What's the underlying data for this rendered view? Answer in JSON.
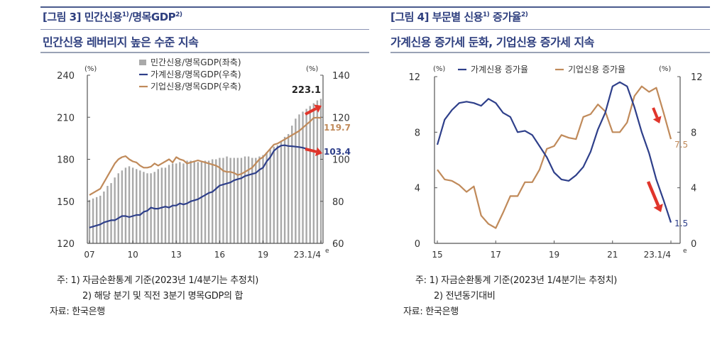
{
  "figures": [
    {
      "title": "[그림 3] 민간신용",
      "title_sup1": "1)",
      "title_mid": "/명목GDP",
      "title_sup2": "2)",
      "subtitle": "민간신용 레버리지 높은 수준 지속",
      "notes": [
        {
          "prefix": "주:",
          "text": "1) 자금순환통계 기준(2023년 1/4분기는 추정치)"
        },
        {
          "prefix": "",
          "text": "2) 해당 분기 및 직전 3분기 명목GDP의 합"
        },
        {
          "prefix": "자료:",
          "text": "한국은행"
        }
      ]
    },
    {
      "title": "[그림 4] 부문별 신용",
      "title_sup1": "1)",
      "title_mid": " 증가율",
      "title_sup2": "2)",
      "subtitle": "가계신용 증가세 둔화, 기업신용 증가세 지속",
      "notes": [
        {
          "prefix": "주:",
          "text": "1) 자금순환통계 기준(2023년 1/4분기는 추정치)"
        },
        {
          "prefix": "",
          "text": "2) 전년동기대비"
        },
        {
          "prefix": "자료:",
          "text": "한국은행"
        }
      ]
    }
  ],
  "colors": {
    "title": "#2e3f7f",
    "bars": "#a9a9a9",
    "household": "#2e3f8a",
    "corporate": "#c08a5a",
    "arrow": "#e0352b",
    "axis": "#555555"
  },
  "chart_data": [
    {
      "type": "bar+line",
      "title": "민간신용/명목GDP",
      "left_axis": {
        "unit": "(%)",
        "ylim": [
          120,
          240
        ],
        "ticks": [
          "120",
          "150",
          "180",
          "210",
          "240"
        ]
      },
      "right_axis": {
        "unit": "(%)",
        "ylim": [
          60,
          140
        ],
        "ticks": [
          "60",
          "80",
          "100",
          "120",
          "140"
        ]
      },
      "x_tick_labels": [
        "07",
        "10",
        "13",
        "16",
        "19",
        "23.1/4"
      ],
      "x_tick_suffix": "e",
      "x_start": "2007Q1",
      "x_end": "2023Q1",
      "legend": [
        "민간신용/명목GDP(좌축)",
        "가계신용/명목GDP(우축)",
        "기업신용/명목GDP(우축)"
      ],
      "annotations": {
        "bar_last": "223.1",
        "corporate_last": "119.7",
        "household_last": "103.4"
      },
      "series": [
        {
          "name": "민간신용/명목GDP(좌축)",
          "axis": "left",
          "kind": "bar",
          "values": [
            151,
            152,
            153,
            154,
            157,
            161,
            163,
            167,
            170,
            172,
            174,
            175,
            174,
            173,
            172,
            171,
            170,
            170,
            171,
            173,
            174,
            174,
            176,
            177,
            177,
            178,
            177,
            179,
            179,
            179,
            178,
            178,
            179,
            179,
            180,
            180,
            181,
            181,
            182,
            181,
            181,
            181,
            181,
            182,
            182,
            181,
            181,
            182,
            183,
            185,
            187,
            189,
            190,
            193,
            196,
            198,
            204,
            209,
            212,
            214,
            216,
            218,
            220,
            222,
            223.1
          ]
        },
        {
          "name": "가계신용/명목GDP(우축)",
          "axis": "right",
          "kind": "line",
          "values": [
            67.5,
            68,
            68.5,
            69,
            70,
            70.5,
            71,
            71,
            72,
            73,
            73,
            72.5,
            73,
            73.5,
            73.5,
            75,
            75.5,
            77,
            76.5,
            76.5,
            77,
            77.5,
            77,
            78,
            78,
            79,
            78.5,
            79,
            80,
            80.5,
            81,
            82,
            83,
            84,
            84.5,
            86,
            87.5,
            88,
            88.5,
            89,
            90,
            90.5,
            91,
            92,
            92.5,
            93,
            93.5,
            95,
            96,
            99,
            101,
            104,
            105.5,
            106.5,
            106.7,
            106.3,
            106.2,
            106,
            105.8,
            105.5,
            105,
            104.5,
            104,
            103.7,
            103.4
          ]
        },
        {
          "name": "기업신용/명목GDP(우축)",
          "axis": "right",
          "kind": "line",
          "values": [
            83,
            84,
            85,
            86,
            89,
            92,
            95,
            98,
            100,
            101,
            101.5,
            100,
            99,
            98.5,
            97,
            96,
            96,
            96.5,
            98,
            97,
            98,
            99,
            100,
            98.5,
            101,
            100,
            99.5,
            98,
            98.5,
            99,
            99.5,
            99,
            98.5,
            98,
            97.5,
            97,
            96,
            94.5,
            94,
            94,
            93.5,
            92.5,
            93,
            94,
            95,
            96,
            98,
            100,
            101,
            103,
            105,
            107,
            107.5,
            108.5,
            109.5,
            110.5,
            111.5,
            112.5,
            113.5,
            115,
            116.5,
            118,
            119.7,
            119.8,
            119.7
          ]
        }
      ]
    },
    {
      "type": "line",
      "title": "부문별 신용 증가율",
      "left_axis": {
        "unit": "(%)",
        "ylim": [
          0,
          12
        ],
        "ticks": [
          "0",
          "4",
          "8",
          "12"
        ]
      },
      "right_axis": {
        "unit": "(%)",
        "ylim": [
          0,
          12
        ],
        "ticks": [
          "0",
          "4",
          "8",
          "12"
        ]
      },
      "x_tick_labels": [
        "15",
        "17",
        "19",
        "21",
        "23.1/4"
      ],
      "x_tick_suffix": "e",
      "x_start": "2015Q1",
      "x_end": "2023Q1",
      "legend": [
        "가계신용 증가율",
        "기업신용 증가율"
      ],
      "annotations": {
        "corporate_last": "7.5",
        "household_last": "1.5"
      },
      "series": [
        {
          "name": "가계신용 증가율",
          "values": [
            7.1,
            8.9,
            9.6,
            10.1,
            10.2,
            10.1,
            9.9,
            10.4,
            10.1,
            9.4,
            9.1,
            8.0,
            8.1,
            7.8,
            7.0,
            6.2,
            5.1,
            4.6,
            4.5,
            4.9,
            5.5,
            6.6,
            8.2,
            9.4,
            11.3,
            11.6,
            11.3,
            9.8,
            8.0,
            6.5,
            4.6,
            3.1,
            1.5
          ]
        },
        {
          "name": "기업신용 증가율",
          "values": [
            5.3,
            4.6,
            4.5,
            4.2,
            3.7,
            4.1,
            2.0,
            1.4,
            1.1,
            2.2,
            3.4,
            3.4,
            4.4,
            4.4,
            5.3,
            6.8,
            7.0,
            7.8,
            7.6,
            7.5,
            9.1,
            9.3,
            10.0,
            9.5,
            8.0,
            8.0,
            8.7,
            10.6,
            11.3,
            10.9,
            11.2,
            9.4,
            7.5
          ]
        }
      ]
    }
  ]
}
